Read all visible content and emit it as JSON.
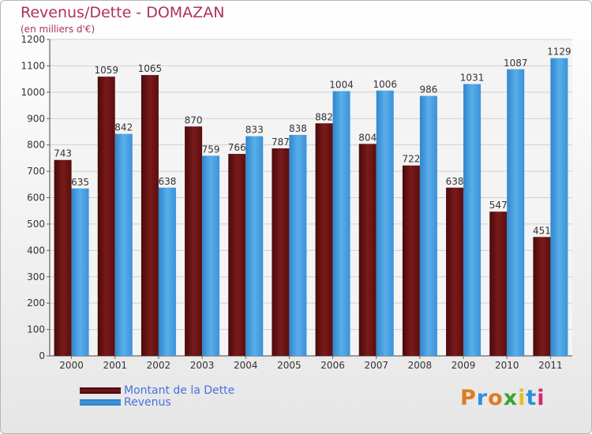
{
  "title": "Revenus/Dette - DOMAZAN",
  "subtitle": "(en milliers d'€)",
  "brand": {
    "logo_text": "Proxiti",
    "colors": [
      "#e07a1f",
      "#2f8fd8",
      "#e07a1f",
      "#3aa335",
      "#e0c21f",
      "#2f8fd8",
      "#d8256c"
    ]
  },
  "colors": {
    "dette": "#7a1a1a",
    "revenus": "#3d98dd",
    "title": "#b03060",
    "legend_text": "#4a6ee0"
  },
  "chart_data": {
    "type": "bar",
    "title": "Revenus/Dette - DOMAZAN",
    "subtitle": "(en milliers d'€)",
    "categories": [
      "2000",
      "2001",
      "2002",
      "2003",
      "2004",
      "2005",
      "2006",
      "2007",
      "2008",
      "2009",
      "2010",
      "2011"
    ],
    "series": [
      {
        "name": "Montant de la Dette",
        "values": [
          743,
          1059,
          1065,
          870,
          766,
          787,
          882,
          804,
          722,
          638,
          547,
          451
        ]
      },
      {
        "name": "Revenus",
        "values": [
          635,
          842,
          638,
          759,
          833,
          838,
          1004,
          1006,
          986,
          1031,
          1087,
          1129
        ]
      }
    ],
    "ylim": [
      0,
      1200
    ],
    "yticks": [
      0,
      100,
      200,
      300,
      400,
      500,
      600,
      700,
      800,
      900,
      1000,
      1100,
      1200
    ],
    "grid": true,
    "legend_position": "bottom-left"
  }
}
